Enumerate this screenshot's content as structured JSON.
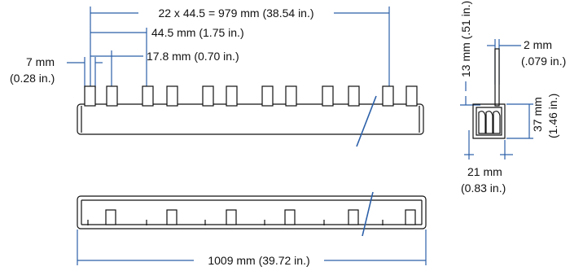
{
  "dimensions": {
    "overall_pitch": "22 x 44.5 = 979 mm (38.54 in.)",
    "pitch": "44.5 mm  (1.75 in.)",
    "pin_spacing": "17.8 mm (0.70 in.)",
    "pin_width_mm": "7 mm",
    "pin_width_in": "(0.28 in.)",
    "pin_height": "13 mm (.51 in.)",
    "thickness_mm": "2 mm",
    "thickness_in": "(.079 in.)",
    "height_mm": "37 mm",
    "height_in": "(1.46 in.)",
    "depth_mm": "21 mm",
    "depth_in": "(0.83 in.)",
    "total_length": "1009 mm  (39.72 in.)"
  },
  "colors": {
    "dimension_lines": "#2b5fa8",
    "drawing_lines": "#111111"
  }
}
